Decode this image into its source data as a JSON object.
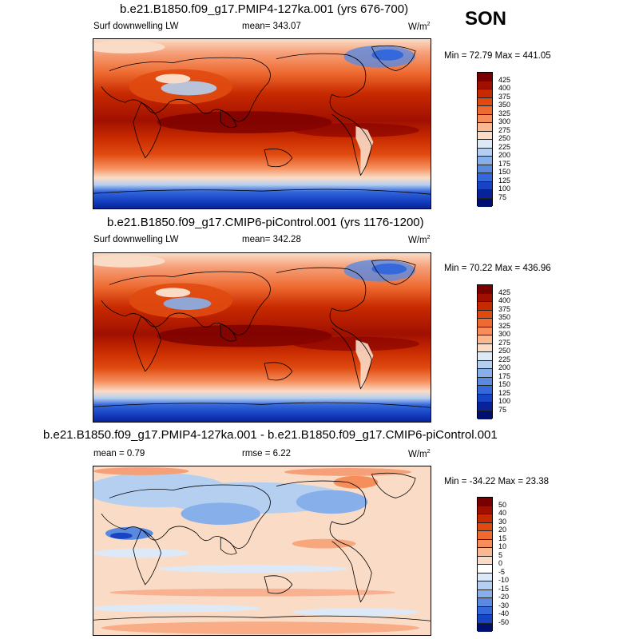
{
  "season": "SON",
  "units_base": "W/m",
  "units_exp": "2",
  "panels": [
    {
      "title": "b.e21.B1850.f09_g17.PMIP4-127ka.001 (yrs 676-700)",
      "left_label": "Surf downwelling LW",
      "center_label": "mean= 343.07",
      "minmax": "Min =  72.79 Max = 441.05",
      "colorbar_labels": [
        "425",
        "400",
        "375",
        "350",
        "325",
        "300",
        "275",
        "250",
        "225",
        "200",
        "175",
        "150",
        "125",
        "100",
        "75"
      ]
    },
    {
      "title": "b.e21.B1850.f09_g17.CMIP6-piControl.001 (yrs 1176-1200)",
      "left_label": "Surf downwelling LW",
      "center_label": "mean= 342.28",
      "minmax": "Min =  70.22 Max = 436.96",
      "colorbar_labels": [
        "425",
        "400",
        "375",
        "350",
        "325",
        "300",
        "275",
        "250",
        "225",
        "200",
        "175",
        "150",
        "125",
        "100",
        "75"
      ]
    },
    {
      "title": "b.e21.B1850.f09_g17.PMIP4-127ka.001 - b.e21.B1850.f09_g17.CMIP6-piControl.001",
      "left_label": "mean =  0.79",
      "center_label": "rmse =  6.22",
      "minmax": "Min = -34.22 Max =  23.38",
      "colorbar_labels": [
        "50",
        "40",
        "30",
        "20",
        "15",
        "10",
        "5",
        "0",
        "-5",
        "-10",
        "-15",
        "-20",
        "-30",
        "-40",
        "-50"
      ]
    }
  ],
  "colors": {
    "abs_scale": [
      "#7a0000",
      "#a01000",
      "#c82a00",
      "#e04a10",
      "#ee6a30",
      "#f68e5c",
      "#fab890",
      "#fadcc6",
      "#dde9f6",
      "#b4cff0",
      "#87b0ea",
      "#5a8ae0",
      "#3568da",
      "#1744c4",
      "#08239a",
      "#001070"
    ],
    "diff_scale": [
      "#7a0000",
      "#a01000",
      "#c82a00",
      "#e04a10",
      "#ee6a30",
      "#f68e5c",
      "#fab890",
      "#fadcc6",
      "#ffffff",
      "#dde9f6",
      "#b4cff0",
      "#87b0ea",
      "#5a8ae0",
      "#3568da",
      "#1744c4",
      "#001070"
    ]
  }
}
